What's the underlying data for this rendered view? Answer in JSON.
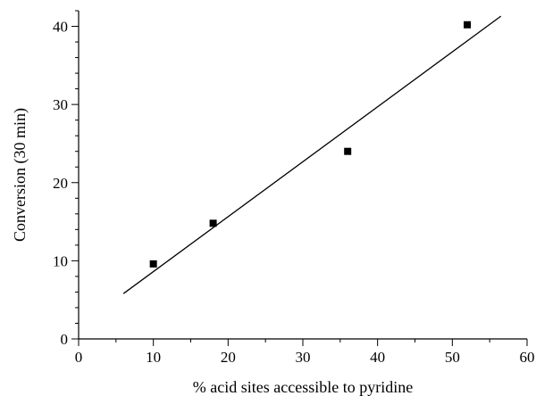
{
  "chart_data": {
    "type": "scatter",
    "title": "",
    "xlabel": "% acid sites accessible to pyridine",
    "ylabel": "Conversion (30 min)",
    "xlim": [
      0,
      60
    ],
    "ylim": [
      0,
      42
    ],
    "x_ticks": [
      0,
      10,
      20,
      30,
      40,
      50,
      60
    ],
    "y_ticks": [
      0,
      10,
      20,
      30,
      40
    ],
    "x_minor_step": 5,
    "y_minor_step": 2,
    "grid": false,
    "legend": "none",
    "series": [
      {
        "marker": "square",
        "color": "#000000",
        "points": [
          {
            "x": 10,
            "y": 9.6
          },
          {
            "x": 18,
            "y": 14.8
          },
          {
            "x": 36,
            "y": 24.0
          },
          {
            "x": 52,
            "y": 40.2
          }
        ]
      }
    ],
    "trendline": {
      "type": "linear",
      "color": "#000000",
      "points": [
        {
          "x": 6,
          "y": 5.8
        },
        {
          "x": 56.5,
          "y": 41.3
        }
      ]
    }
  }
}
